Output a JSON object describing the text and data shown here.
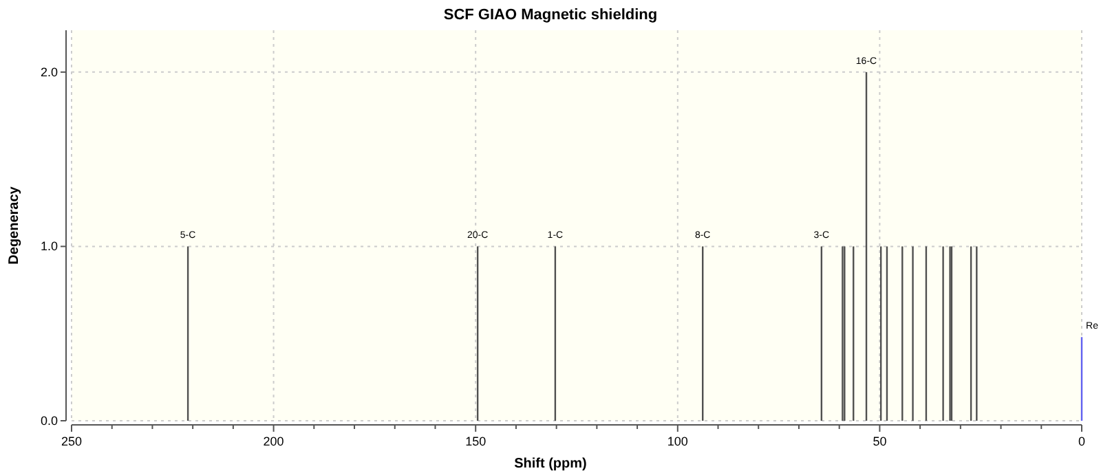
{
  "chart_data": {
    "type": "bar",
    "title": "SCF GIAO Magnetic shielding",
    "xlabel": "Shift (ppm)",
    "ylabel": "Degeneracy",
    "x": [
      221.2,
      149.5,
      130.3,
      93.8,
      64.4,
      59.2,
      58.7,
      56.5,
      53.3,
      49.7,
      48.2,
      44.4,
      41.8,
      38.5,
      34.3,
      32.6,
      32.2,
      27.4,
      26.0,
      0
    ],
    "values": [
      1,
      1,
      1,
      1,
      1,
      1,
      1,
      1,
      2,
      1,
      1,
      1,
      1,
      1,
      1,
      1,
      1,
      1,
      1,
      0.48
    ],
    "colors": [
      "#505050",
      "#505050",
      "#505050",
      "#505050",
      "#505050",
      "#505050",
      "#505050",
      "#505050",
      "#505050",
      "#505050",
      "#505050",
      "#505050",
      "#505050",
      "#505050",
      "#505050",
      "#505050",
      "#505050",
      "#505050",
      "#505050",
      "#6060f0"
    ],
    "annotations": [
      {
        "text": "5-C",
        "x": 221.2,
        "y": 1
      },
      {
        "text": "20-C",
        "x": 149.5,
        "y": 1
      },
      {
        "text": "1-C",
        "x": 130.3,
        "y": 1
      },
      {
        "text": "8-C",
        "x": 93.8,
        "y": 1
      },
      {
        "text": "3-C",
        "x": 64.4,
        "y": 1
      },
      {
        "text": "16-C",
        "x": 53.3,
        "y": 2
      },
      {
        "text": "Re",
        "x": 0,
        "y": 0.48
      }
    ],
    "xlim": [
      250,
      0
    ],
    "ylim": [
      0,
      2.24
    ],
    "xticks": [
      250,
      {
        "value": 240,
        "label": null
      },
      {
        "value": 230,
        "label": null
      },
      {
        "value": 220,
        "label": null
      },
      {
        "value": 210,
        "label": null
      },
      200,
      {
        "value": 190,
        "label": null
      },
      {
        "value": 180,
        "label": null
      },
      {
        "value": 170,
        "label": null
      },
      {
        "value": 160,
        "label": null
      },
      150,
      {
        "value": 140,
        "label": null
      },
      {
        "value": 130,
        "label": null
      },
      {
        "value": 120,
        "label": null
      },
      {
        "value": 110,
        "label": null
      },
      100,
      {
        "value": 90,
        "label": null
      },
      {
        "value": 80,
        "label": null
      },
      {
        "value": 70,
        "label": null
      },
      {
        "value": 60,
        "label": null
      },
      50,
      {
        "value": 40,
        "label": null
      },
      {
        "value": 30,
        "label": null
      },
      {
        "value": 20,
        "label": null
      },
      {
        "value": 10,
        "label": null
      },
      0
    ],
    "yticks": [
      {
        "value": 0,
        "label": "0.0"
      },
      {
        "value": 1,
        "label": "1.0"
      },
      {
        "value": 2,
        "label": "2.0"
      }
    ],
    "grid": true
  }
}
